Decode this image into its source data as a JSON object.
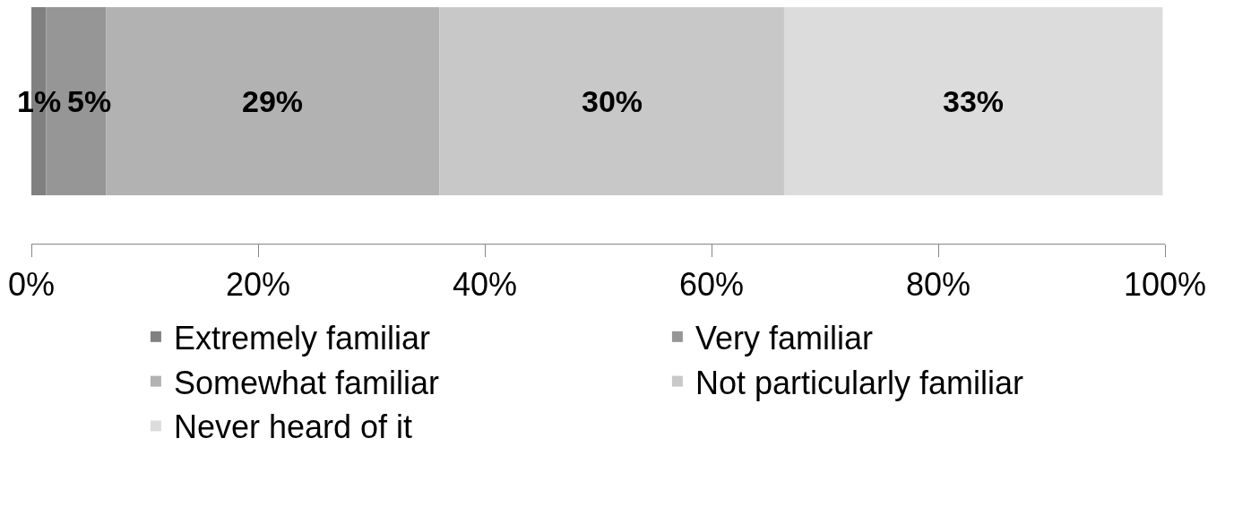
{
  "chart_data": {
    "type": "bar",
    "orientation": "horizontal",
    "stacked": true,
    "categories": [
      null
    ],
    "series": [
      {
        "name": "Extremely familiar",
        "color": "#808080",
        "values": [
          1.3
        ],
        "value_labels": [
          "1%"
        ]
      },
      {
        "name": "Very familiar",
        "color": "#969696",
        "values": [
          5.3
        ],
        "value_labels": [
          "5%"
        ]
      },
      {
        "name": "Somewhat familiar",
        "color": "#b2b2b2",
        "values": [
          29.4
        ],
        "value_labels": [
          "29%"
        ]
      },
      {
        "name": "Not particularly familiar",
        "color": "#c8c8c8",
        "values": [
          30.4
        ],
        "value_labels": [
          "30%"
        ]
      },
      {
        "name": "Never heard of it",
        "color": "#dcdcdc",
        "values": [
          33.4
        ],
        "value_labels": [
          "33%"
        ]
      }
    ],
    "xlim": [
      0,
      100
    ],
    "xticks": [
      {
        "value": 0,
        "label": "0%"
      },
      {
        "value": 20,
        "label": "20%"
      },
      {
        "value": 40,
        "label": "40%"
      },
      {
        "value": 60,
        "label": "60%"
      },
      {
        "value": 80,
        "label": "80%"
      },
      {
        "value": 100,
        "label": "100%"
      }
    ],
    "tick_labels": "x",
    "legend": "bottom"
  }
}
